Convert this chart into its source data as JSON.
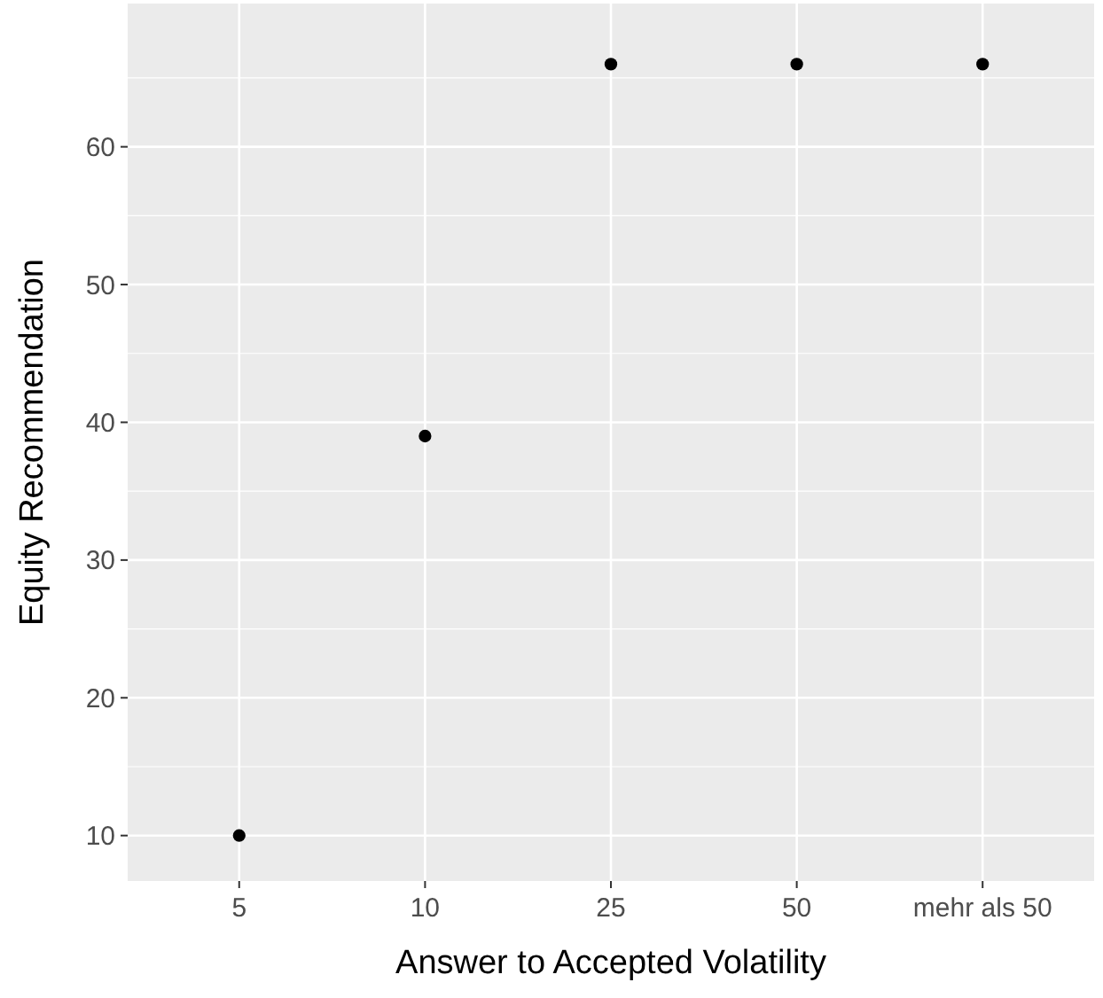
{
  "chart_data": {
    "type": "scatter",
    "xlabel": "Answer to Accepted Volatility",
    "ylabel": "Equity Recommendation",
    "categories": [
      "5",
      "10",
      "25",
      "50",
      "mehr als 50"
    ],
    "series": [
      {
        "color": "#000000",
        "values": [
          10,
          39,
          66,
          66,
          66
        ]
      }
    ],
    "ylim": [
      6.7,
      70.4
    ],
    "yticks": [
      10,
      20,
      30,
      40,
      50,
      60
    ],
    "grid": true,
    "marker": "circle"
  }
}
